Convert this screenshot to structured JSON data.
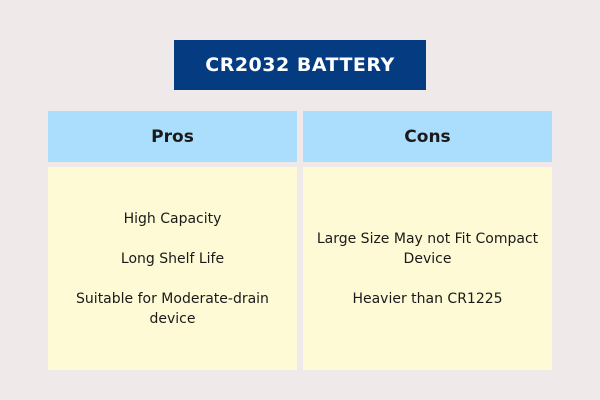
{
  "title": "CR2032 BATTERY",
  "colors": {
    "background": "#efe9e9",
    "title_bg": "#053b80",
    "header_bg": "#aadefc",
    "body_bg": "#fefad5"
  },
  "pros": {
    "header": "Pros",
    "items": [
      "High Capacity",
      "Long Shelf Life",
      "Suitable for Moderate-drain device"
    ]
  },
  "cons": {
    "header": "Cons",
    "items": [
      "Large Size May not Fit Compact Device",
      "Heavier than CR1225"
    ]
  }
}
